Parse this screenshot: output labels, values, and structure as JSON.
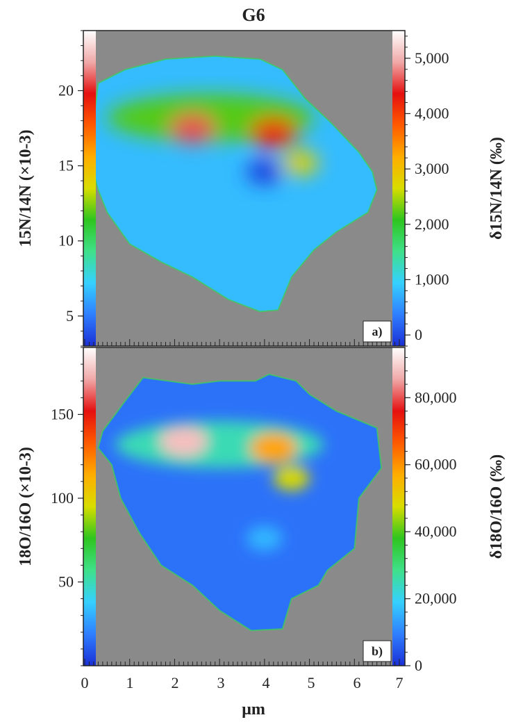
{
  "chart_data": {
    "type": "heatmap",
    "title": "G6",
    "xlabel": "µm",
    "xlim": [
      0,
      7
    ],
    "x_ticks": [
      "0",
      "1",
      "2",
      "3",
      "4",
      "5",
      "6",
      "7"
    ],
    "colormap": [
      "#1a2fd6",
      "#2f7fff",
      "#35d0ff",
      "#3fe08a",
      "#2ec51f",
      "#d8dd00",
      "#ffad00",
      "#ff5a00",
      "#e51010",
      "#f0a8a8",
      "#ffffff"
    ],
    "background_color": "#8a8a8a",
    "panels": [
      {
        "tag": "a)",
        "ylabel": "15N/14N (×10-3)",
        "cbar_label": "δ15N/14N (‰)",
        "ylim": [
          3,
          24
        ],
        "y_ticks": [
          5,
          10,
          15,
          20
        ],
        "cbar_range": [
          -200,
          5500
        ],
        "cbar_ticks": [
          "0",
          "1,000",
          "2,000",
          "3,000",
          "4,000",
          "5,000"
        ],
        "cbar_tick_values": [
          0,
          1000,
          2000,
          3000,
          4000,
          5000
        ],
        "grain_outline": [
          [
            0.3,
            20.5
          ],
          [
            0.9,
            21.4
          ],
          [
            1.8,
            22.1
          ],
          [
            2.9,
            22.3
          ],
          [
            3.9,
            22.1
          ],
          [
            4.4,
            21.4
          ],
          [
            4.9,
            19.5
          ],
          [
            5.5,
            17.8
          ],
          [
            6.1,
            15.9
          ],
          [
            6.4,
            14.6
          ],
          [
            6.5,
            13.4
          ],
          [
            6.3,
            11.9
          ],
          [
            5.6,
            10.6
          ],
          [
            5.1,
            9.4
          ],
          [
            4.6,
            7.6
          ],
          [
            4.3,
            5.4
          ],
          [
            3.9,
            5.3
          ],
          [
            3.2,
            6.1
          ],
          [
            2.4,
            7.6
          ],
          [
            1.7,
            8.6
          ],
          [
            1.0,
            9.8
          ],
          [
            0.5,
            11.9
          ],
          [
            0.3,
            13.4
          ],
          [
            0.1,
            15.6
          ],
          [
            0.2,
            18.0
          ]
        ],
        "hotspots": [
          {
            "label": "grain base",
            "x": 3.2,
            "y": 14.0,
            "value": 800
          },
          {
            "label": "green band",
            "x": 2.8,
            "y": 18.2,
            "value": 2200
          },
          {
            "label": "hot spot 1",
            "x": 2.4,
            "y": 17.5,
            "value": 4600
          },
          {
            "label": "hot spot 2",
            "x": 4.2,
            "y": 17.2,
            "value": 4200
          },
          {
            "label": "secondary",
            "x": 4.8,
            "y": 15.2,
            "value": 2800
          },
          {
            "label": "cold spot",
            "x": 4.0,
            "y": 14.6,
            "value": -100
          }
        ]
      },
      {
        "tag": "b)",
        "ylabel": "18O/16O (×10-3)",
        "cbar_label": "δ18O/16O (‰)",
        "ylim": [
          0,
          190
        ],
        "y_ticks": [
          50,
          100,
          150
        ],
        "cbar_range": [
          0,
          95000
        ],
        "cbar_ticks": [
          "0",
          "20,000",
          "40,000",
          "60,000",
          "80,000"
        ],
        "cbar_tick_values": [
          0,
          20000,
          40000,
          60000,
          80000
        ],
        "grain_outline": [
          [
            0.4,
            140
          ],
          [
            0.9,
            158
          ],
          [
            1.3,
            172
          ],
          [
            2.4,
            168
          ],
          [
            3.0,
            170
          ],
          [
            3.8,
            170
          ],
          [
            4.1,
            174
          ],
          [
            4.7,
            170
          ],
          [
            5.0,
            162
          ],
          [
            5.6,
            152
          ],
          [
            6.5,
            142
          ],
          [
            6.6,
            118
          ],
          [
            6.1,
            100
          ],
          [
            6.0,
            70
          ],
          [
            5.4,
            57
          ],
          [
            5.2,
            48
          ],
          [
            4.6,
            40
          ],
          [
            4.4,
            22
          ],
          [
            3.7,
            21
          ],
          [
            3.0,
            33
          ],
          [
            2.4,
            48
          ],
          [
            1.7,
            60
          ],
          [
            1.2,
            80
          ],
          [
            0.8,
            100
          ],
          [
            0.6,
            120
          ],
          [
            0.3,
            130
          ]
        ],
        "hotspots": [
          {
            "label": "grain base",
            "x": 3.4,
            "y": 95,
            "value": 8000
          },
          {
            "label": "green band",
            "x": 3.0,
            "y": 132,
            "value": 25000
          },
          {
            "label": "hot spot 1",
            "x": 2.2,
            "y": 134,
            "value": 88000
          },
          {
            "label": "hot spot 2",
            "x": 4.2,
            "y": 130,
            "value": 58000
          },
          {
            "label": "secondary",
            "x": 4.6,
            "y": 112,
            "value": 48000
          },
          {
            "label": "faint spot",
            "x": 4.0,
            "y": 76,
            "value": 16000
          }
        ]
      }
    ]
  }
}
